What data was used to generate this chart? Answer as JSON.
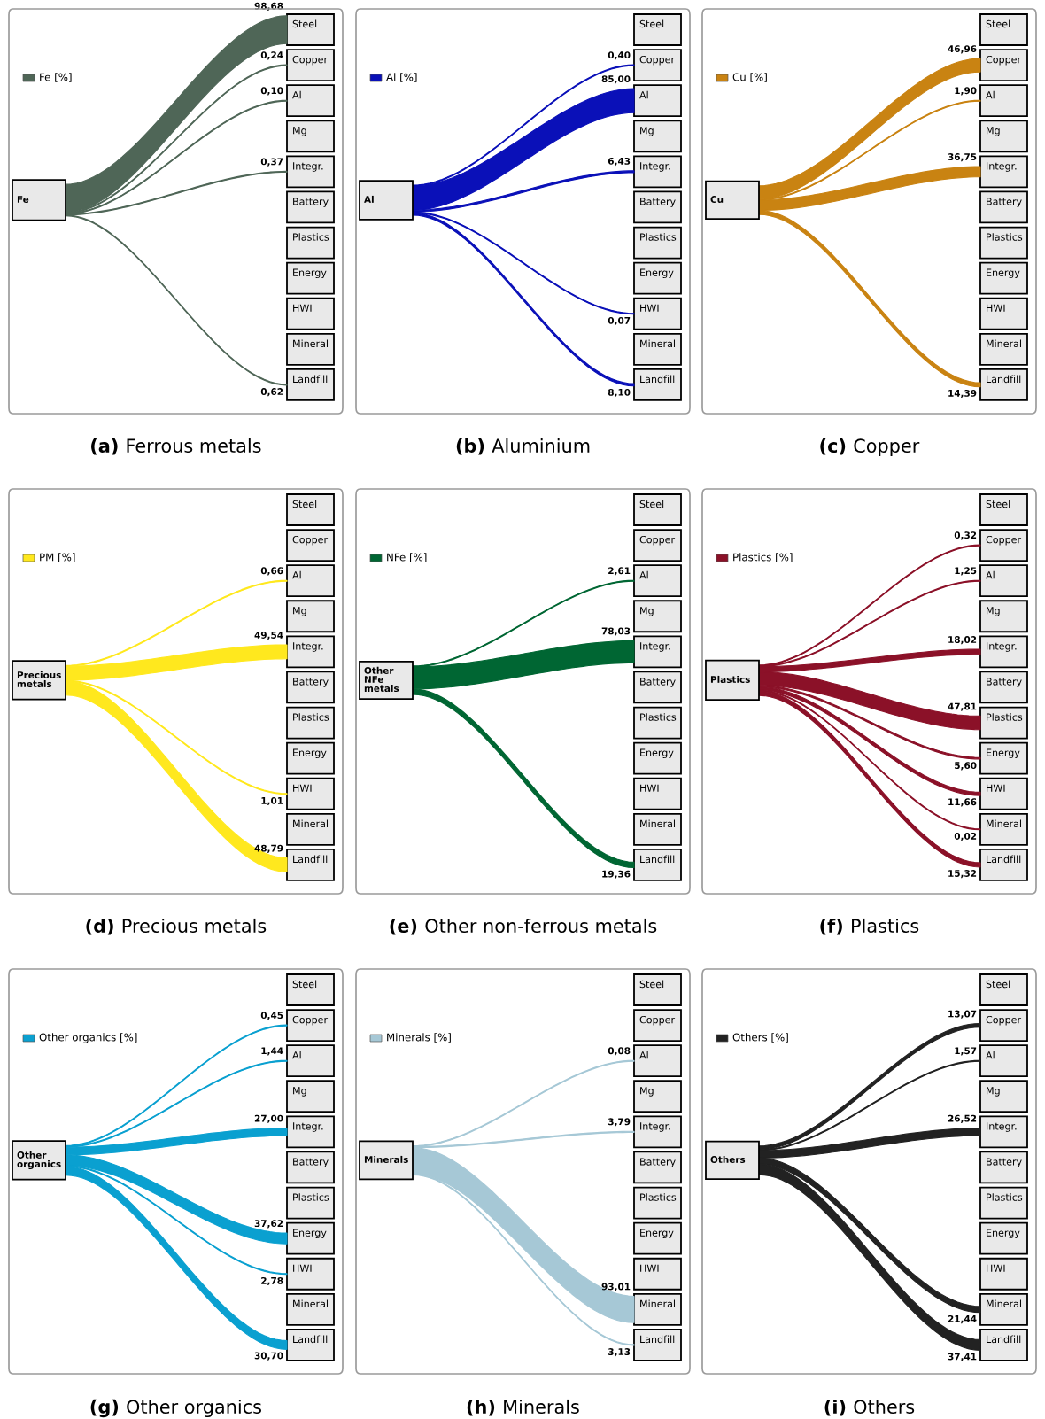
{
  "chart_data": [
    {
      "type": "other",
      "title": "(a) Ferrous metals",
      "annotations": [
        "Fe"
      ],
      "legend": "top left",
      "categories": [
        "Steel",
        "Copper",
        "Al",
        "Mg",
        "Integr.",
        "Battery",
        "Plastics",
        "Energy",
        "HWI",
        "Mineral",
        "Landfill"
      ],
      "series": [
        {
          "name": "Fe [%]",
          "color": "#4f6657",
          "values": [
            98.68,
            0.24,
            0.1,
            null,
            0.37,
            null,
            null,
            null,
            null,
            null,
            0.62
          ],
          "value_labels": [
            "98,68",
            "0,24",
            "0,10",
            null,
            "0,37",
            null,
            null,
            null,
            null,
            null,
            "0,62"
          ]
        }
      ]
    },
    {
      "type": "other",
      "title": "(b) Aluminium",
      "annotations": [
        "Al"
      ],
      "legend": "top left",
      "categories": [
        "Steel",
        "Copper",
        "Al",
        "Mg",
        "Integr.",
        "Battery",
        "Plastics",
        "Energy",
        "HWI",
        "Mineral",
        "Landfill"
      ],
      "series": [
        {
          "name": "Al [%]",
          "color": "#0a10b8",
          "values": [
            null,
            0.4,
            85.0,
            null,
            6.43,
            null,
            null,
            null,
            0.07,
            null,
            8.1
          ],
          "value_labels": [
            null,
            "0,40",
            "85,00",
            null,
            "6,43",
            null,
            null,
            null,
            "0,07",
            null,
            "8,10"
          ]
        }
      ]
    },
    {
      "type": "other",
      "title": "(c) Copper",
      "annotations": [
        "Cu"
      ],
      "legend": "top left",
      "categories": [
        "Steel",
        "Copper",
        "Al",
        "Mg",
        "Integr.",
        "Battery",
        "Plastics",
        "Energy",
        "HWI",
        "Mineral",
        "Landfill"
      ],
      "series": [
        {
          "name": "Cu [%]",
          "color": "#c98312",
          "values": [
            null,
            46.96,
            1.9,
            null,
            36.75,
            null,
            null,
            null,
            null,
            null,
            14.39
          ],
          "value_labels": [
            null,
            "46,96",
            "1,90",
            null,
            "36,75",
            null,
            null,
            null,
            null,
            null,
            "14,39"
          ]
        }
      ]
    },
    {
      "type": "other",
      "title": "(d) Precious metals",
      "annotations": [
        "Precious metals"
      ],
      "legend": "top left",
      "categories": [
        "Steel",
        "Copper",
        "Al",
        "Mg",
        "Integr.",
        "Battery",
        "Plastics",
        "Energy",
        "HWI",
        "Mineral",
        "Landfill"
      ],
      "series": [
        {
          "name": "PM [%]",
          "color": "#ffe81e",
          "values": [
            null,
            null,
            0.66,
            null,
            49.54,
            null,
            null,
            null,
            1.01,
            null,
            48.79
          ],
          "value_labels": [
            null,
            null,
            "0,66",
            null,
            "49,54",
            null,
            null,
            null,
            "1,01",
            null,
            "48,79"
          ]
        }
      ]
    },
    {
      "type": "other",
      "title": "(e) Other non-ferrous metals",
      "annotations": [
        "Other NFe metals"
      ],
      "legend": "top left",
      "categories": [
        "Steel",
        "Copper",
        "Al",
        "Mg",
        "Integr.",
        "Battery",
        "Plastics",
        "Energy",
        "HWI",
        "Mineral",
        "Landfill"
      ],
      "series": [
        {
          "name": "NFe [%]",
          "color": "#006633",
          "values": [
            null,
            null,
            2.61,
            null,
            78.03,
            null,
            null,
            null,
            null,
            null,
            19.36
          ],
          "value_labels": [
            null,
            null,
            "2,61",
            null,
            "78,03",
            null,
            null,
            null,
            null,
            null,
            "19,36"
          ]
        }
      ]
    },
    {
      "type": "other",
      "title": "(f) Plastics",
      "annotations": [
        "Plastics"
      ],
      "legend": "top left",
      "categories": [
        "Steel",
        "Copper",
        "Al",
        "Mg",
        "Integr.",
        "Battery",
        "Plastics",
        "Energy",
        "HWI",
        "Mineral",
        "Landfill"
      ],
      "series": [
        {
          "name": "Plastics [%]",
          "color": "#8b1128",
          "values": [
            null,
            0.32,
            1.25,
            null,
            18.02,
            null,
            47.81,
            5.6,
            11.66,
            0.02,
            15.32
          ],
          "value_labels": [
            null,
            "0,32",
            "1,25",
            null,
            "18,02",
            null,
            "47,81",
            "5,60",
            "11,66",
            "0,02",
            "15,32"
          ]
        }
      ]
    },
    {
      "type": "other",
      "title": "(g) Other organics",
      "annotations": [
        "Other organics"
      ],
      "legend": "top left",
      "categories": [
        "Steel",
        "Copper",
        "Al",
        "Mg",
        "Integr.",
        "Battery",
        "Plastics",
        "Energy",
        "HWI",
        "Mineral",
        "Landfill"
      ],
      "series": [
        {
          "name": "Other organics [%]",
          "color": "#0aa0d0",
          "values": [
            null,
            0.45,
            1.44,
            null,
            27.0,
            null,
            null,
            37.62,
            2.78,
            null,
            30.7
          ],
          "value_labels": [
            null,
            "0,45",
            "1,44",
            null,
            "27,00",
            null,
            null,
            "37,62",
            "2,78",
            null,
            "30,70"
          ]
        }
      ]
    },
    {
      "type": "other",
      "title": "(h) Minerals",
      "annotations": [
        "Minerals"
      ],
      "legend": "top left",
      "categories": [
        "Steel",
        "Copper",
        "Al",
        "Mg",
        "Integr.",
        "Battery",
        "Plastics",
        "Energy",
        "HWI",
        "Mineral",
        "Landfill"
      ],
      "series": [
        {
          "name": "Minerals [%]",
          "color": "#a6c8d6",
          "values": [
            null,
            null,
            0.08,
            null,
            3.79,
            null,
            null,
            null,
            null,
            93.01,
            3.13
          ],
          "value_labels": [
            null,
            null,
            "0,08",
            null,
            "3,79",
            null,
            null,
            null,
            null,
            "93,01",
            "3,13"
          ]
        }
      ]
    },
    {
      "type": "other",
      "title": "(i) Others",
      "annotations": [
        "Others"
      ],
      "legend": "top left",
      "categories": [
        "Steel",
        "Copper",
        "Al",
        "Mg",
        "Integr.",
        "Battery",
        "Plastics",
        "Energy",
        "HWI",
        "Mineral",
        "Landfill"
      ],
      "series": [
        {
          "name": "Others [%]",
          "color": "#222222",
          "values": [
            null,
            13.07,
            1.57,
            null,
            26.52,
            null,
            null,
            null,
            null,
            21.44,
            37.41
          ],
          "value_labels": [
            null,
            "13,07",
            "1,57",
            null,
            "26,52",
            null,
            null,
            null,
            null,
            "21,44",
            "37,41"
          ]
        }
      ]
    }
  ]
}
